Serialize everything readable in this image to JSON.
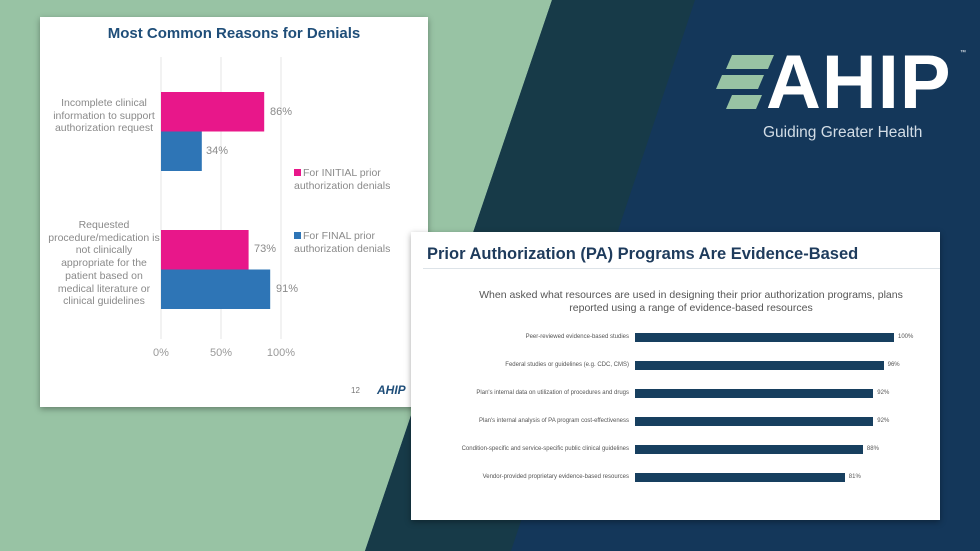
{
  "background_colors": {
    "green": "#98c3a4",
    "teal": "#173a48",
    "navy": "#14375a"
  },
  "logo": {
    "text": "AHIP",
    "trademark": "™",
    "tagline": "Guiding Greater Health",
    "stripe_color": "#98c3a4"
  },
  "slide1": {
    "page_number": "12",
    "footer_logo": "AHIP"
  },
  "chart_data": [
    {
      "type": "bar",
      "orientation": "horizontal",
      "title": "Most Common Reasons for Denials",
      "categories": [
        "Incomplete clinical information to support authorization request",
        "Requested procedure/medication is not clinically appropriate for the patient based on medical literature or clinical guidelines"
      ],
      "series": [
        {
          "name": "For INITIAL prior authorization denials",
          "values": [
            86,
            73
          ],
          "labels": [
            "86%",
            "73%"
          ],
          "color": "#e8178a"
        },
        {
          "name": "For FINAL prior authorization denials",
          "values": [
            34,
            91
          ],
          "labels": [
            "34%",
            "91%"
          ],
          "color": "#2e75b6"
        }
      ],
      "xlim": [
        0,
        100
      ],
      "ticks": [
        "0%",
        "50%",
        "100%"
      ],
      "grid": true,
      "legend": "right"
    },
    {
      "type": "bar",
      "orientation": "horizontal",
      "title": "Prior Authorization (PA) Programs Are Evidence-Based",
      "subtitle": "When asked what resources are used in designing their prior authorization programs, plans reported using a range of evidence-based resources",
      "categories": [
        "Peer-reviewed evidence-based studies",
        "Federal studies or guidelines (e.g. CDC, CMS)",
        "Plan's internal data on utilization of procedures and drugs",
        "Plan's internal analysis of PA program cost-effectiveness",
        "Condition-specific and service-specific public clinical guidelines",
        "Vendor-provided proprietary evidence-based resources"
      ],
      "values": [
        100,
        96,
        92,
        92,
        88,
        81
      ],
      "labels": [
        "100%",
        "96%",
        "92%",
        "92%",
        "88%",
        "81%"
      ],
      "color": "#173f5f",
      "xlim": [
        0,
        100
      ],
      "grid": false
    }
  ]
}
